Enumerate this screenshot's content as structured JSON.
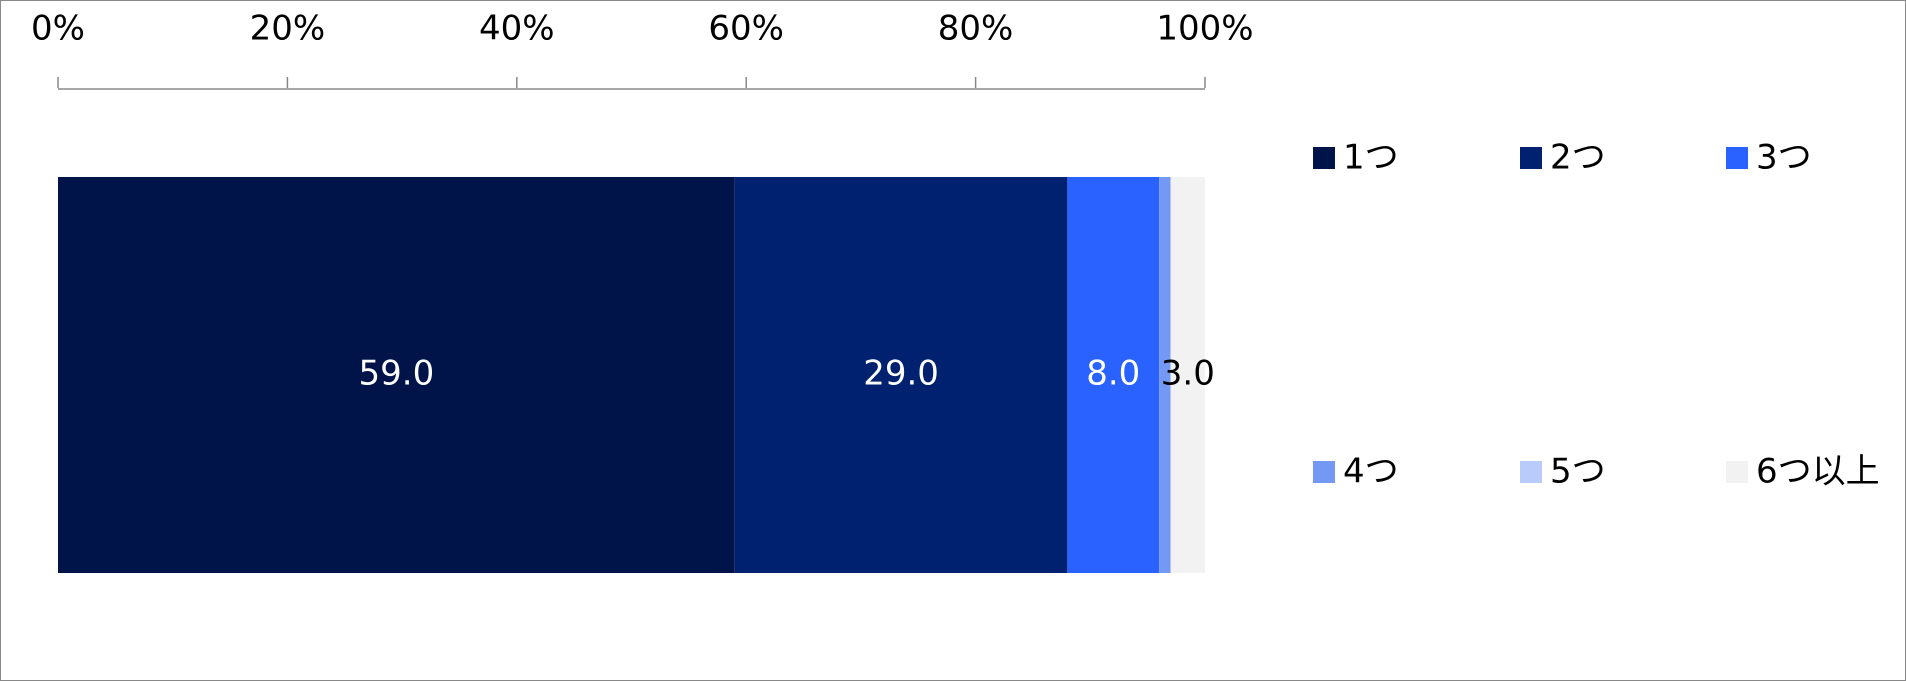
{
  "chart_data": {
    "type": "stacked_horizontal_bar",
    "categories": [
      null
    ],
    "series": [
      {
        "name": "1つ",
        "color": "#001449",
        "values": [
          59
        ],
        "value_labels": [
          "59.0"
        ]
      },
      {
        "name": "2つ",
        "color": "#002070",
        "values": [
          29
        ],
        "value_labels": [
          "29.0"
        ]
      },
      {
        "name": "3つ",
        "color": "#2962ff",
        "values": [
          8
        ],
        "value_labels": [
          "8.0"
        ]
      },
      {
        "name": "4つ",
        "color": "#7399f5",
        "values": [
          1
        ]
      },
      {
        "name": "5つ",
        "color": "#b8cbfb",
        "values": [
          0
        ]
      },
      {
        "name": "6つ以上",
        "color": "#f2f2f2",
        "values": [
          3
        ],
        "value_labels": [
          "3.0"
        ]
      }
    ],
    "xlim": [
      0,
      100
    ],
    "xticks": [
      {
        "value": 0,
        "label": "0%"
      },
      {
        "value": 20,
        "label": "20%"
      },
      {
        "value": 40,
        "label": "40%"
      },
      {
        "value": 60,
        "label": "60%"
      },
      {
        "value": 80,
        "label": "80%"
      },
      {
        "value": 100,
        "label": "100%"
      }
    ],
    "legend": "right"
  }
}
